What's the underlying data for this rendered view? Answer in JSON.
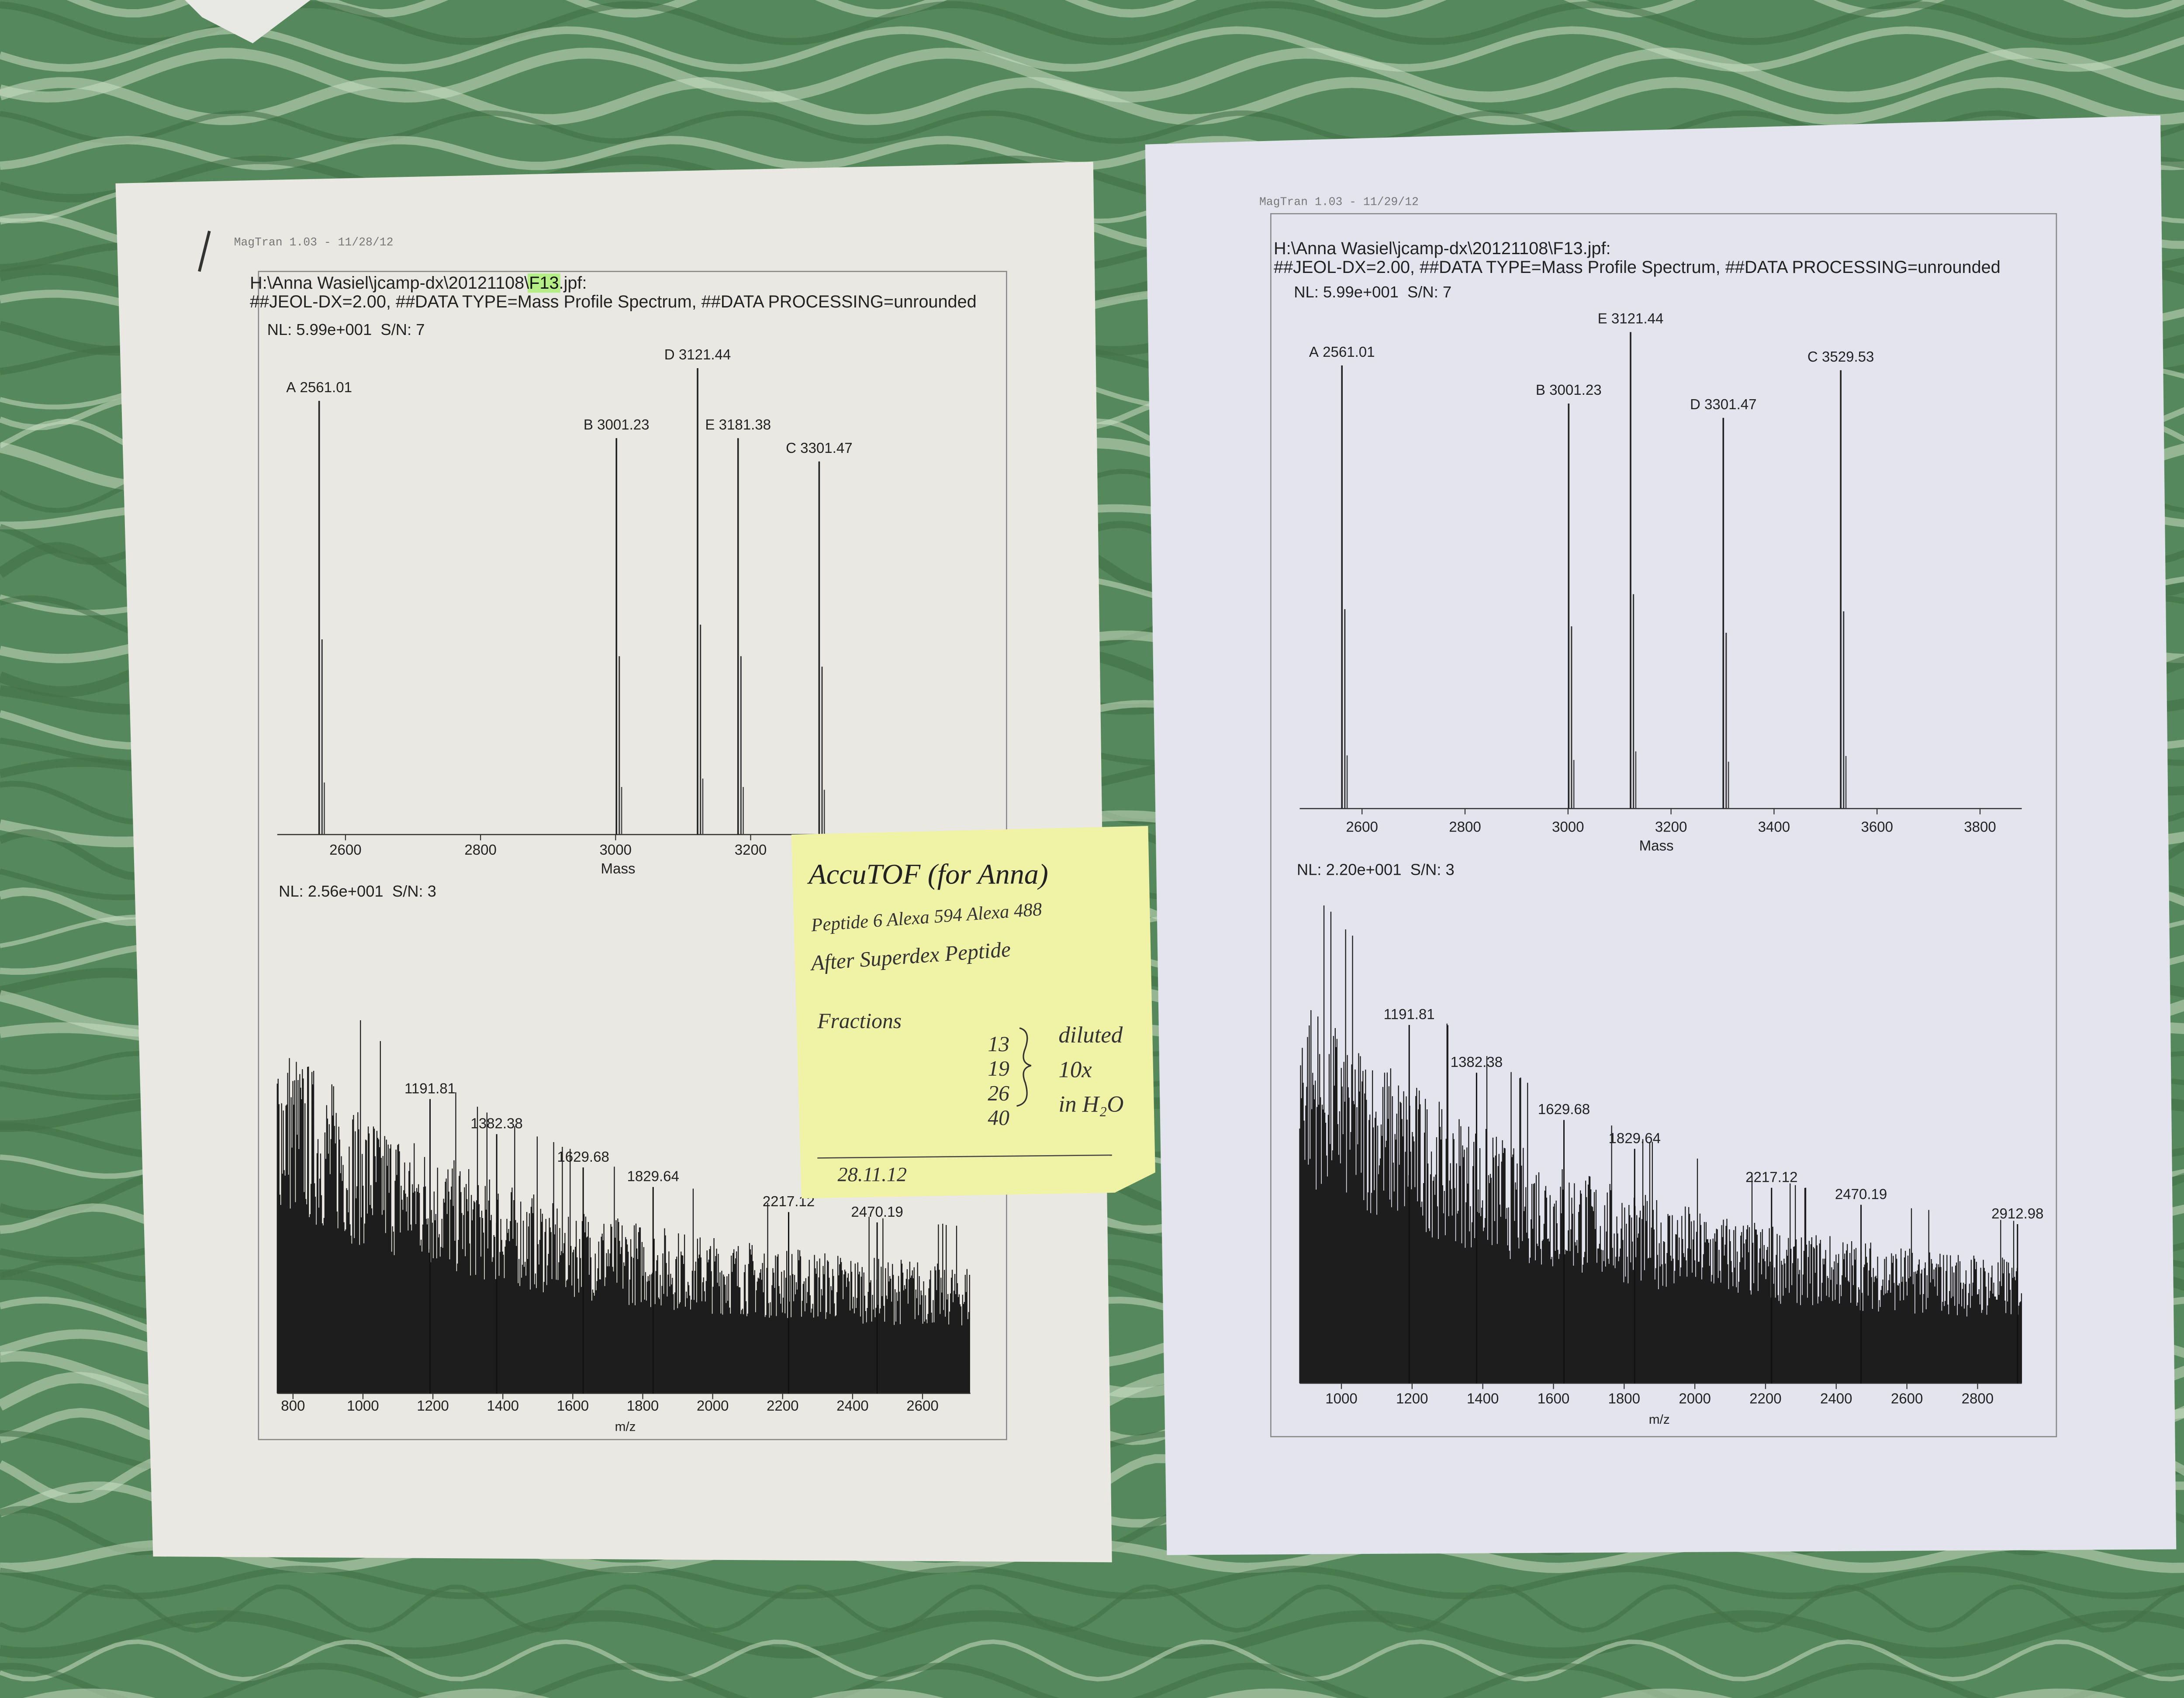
{
  "sheets": [
    {
      "header": "MagTran 1.03 - 11/28/12",
      "path_prefix": "H:\\Anna Wasiel\\jcamp-dx\\20121108\\",
      "path_highlight": "F13",
      "path_suffix": ".jpf:",
      "meta": "##JEOL-DX=2.00, ##DATA TYPE=Mass Profile Spectrum, ##DATA PROCESSING=unrounded",
      "top_plot": {
        "nl": "NL: 5.99e+001  S/N: 7",
        "x_label": "Mass",
        "xlim": [
          2499,
          3564
        ],
        "xticks": [
          2600,
          2800,
          3000,
          3200
        ],
        "peaks": [
          {
            "letter": "A",
            "mass": 2561.01,
            "intensity": 93
          },
          {
            "letter": "B",
            "mass": 3001.23,
            "intensity": 85
          },
          {
            "letter": "D",
            "mass": 3121.44,
            "intensity": 100
          },
          {
            "letter": "E",
            "mass": 3181.38,
            "intensity": 85
          },
          {
            "letter": "C",
            "mass": 3301.47,
            "intensity": 80
          }
        ]
      },
      "bottom_plot": {
        "nl": "NL: 2.56e+001  S/N: 3",
        "x_label": "m/z",
        "xlim": [
          755,
          2737
        ],
        "xticks": [
          800,
          1000,
          1200,
          1400,
          1600,
          1800,
          2000,
          2200,
          2400,
          2600
        ],
        "peak_labels": [
          1191.81,
          1382.38,
          1629.68,
          1829.64,
          2217.12,
          2470.19
        ]
      }
    },
    {
      "header": "MagTran 1.03 - 11/29/12",
      "path_prefix": "H:\\Anna Wasiel\\jcamp-dx\\20121108\\F13.jpf:",
      "meta": "##JEOL-DX=2.00, ##DATA TYPE=Mass Profile Spectrum, ##DATA PROCESSING=unrounded",
      "top_plot": {
        "nl": "NL: 5.99e+001  S/N: 7",
        "x_label": "Mass",
        "xlim": [
          2479,
          3881
        ],
        "xticks": [
          2600,
          2800,
          3000,
          3200,
          3400,
          3600,
          3800
        ],
        "peaks": [
          {
            "letter": "A",
            "mass": 2561.01,
            "intensity": 93
          },
          {
            "letter": "B",
            "mass": 3001.23,
            "intensity": 85
          },
          {
            "letter": "E",
            "mass": 3121.44,
            "intensity": 100
          },
          {
            "letter": "D",
            "mass": 3301.47,
            "intensity": 82
          },
          {
            "letter": "C",
            "mass": 3529.53,
            "intensity": 92
          }
        ]
      },
      "bottom_plot": {
        "nl": "NL: 2.20e+001  S/N: 3",
        "x_label": "m/z",
        "xlim": [
          882,
          2925
        ],
        "xticks": [
          1000,
          1200,
          1400,
          1600,
          1800,
          2000,
          2200,
          2400,
          2600,
          2800
        ],
        "peak_labels": [
          1191.81,
          1382.38,
          1629.68,
          1829.64,
          2217.12,
          2470.19,
          2912.98
        ]
      }
    }
  ],
  "note": {
    "title": "AccuTOF (for Anna)",
    "line1": "Peptide 6 Alexa 594 Alexa 488",
    "line2": "After Superdex Peptide",
    "fractions_label": "Fractions",
    "fractions": [
      13,
      19,
      26,
      40
    ],
    "remarks": [
      "diluted",
      "10x",
      "in H₂O"
    ],
    "date": "28.11.12"
  }
}
